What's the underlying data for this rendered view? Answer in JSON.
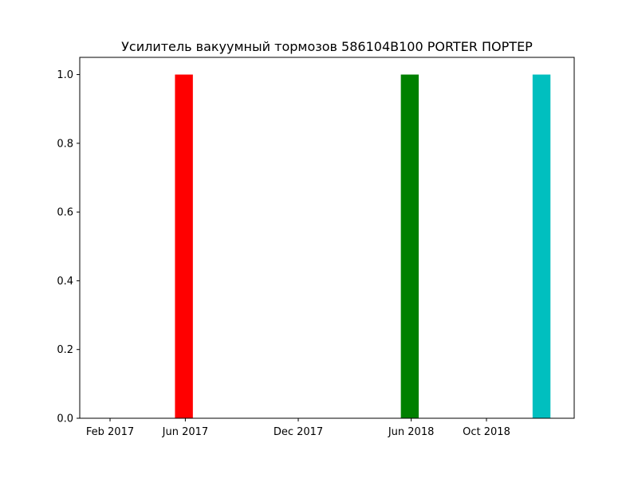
{
  "chart_data": {
    "type": "bar",
    "title": "Усилитель вакуумный тормозов 586104B100 PORTER ПОРТЕР",
    "xlabel": "",
    "ylabel": "",
    "x_tick_labels": [
      "Feb 2017",
      "Jun 2017",
      "Dec 2017",
      "Jun 2018",
      "Oct 2018"
    ],
    "y_tick_labels": [
      "0.0",
      "0.2",
      "0.4",
      "0.6",
      "0.8",
      "1.0"
    ],
    "ylim": [
      0,
      1.05
    ],
    "grid": false,
    "bars": [
      {
        "x": "2017-05",
        "value": 1,
        "color": "#ff0000"
      },
      {
        "x": "2018-05",
        "value": 1,
        "color": "#008000"
      },
      {
        "x": "2018-12",
        "value": 1,
        "color": "#00bfbf"
      }
    ]
  }
}
